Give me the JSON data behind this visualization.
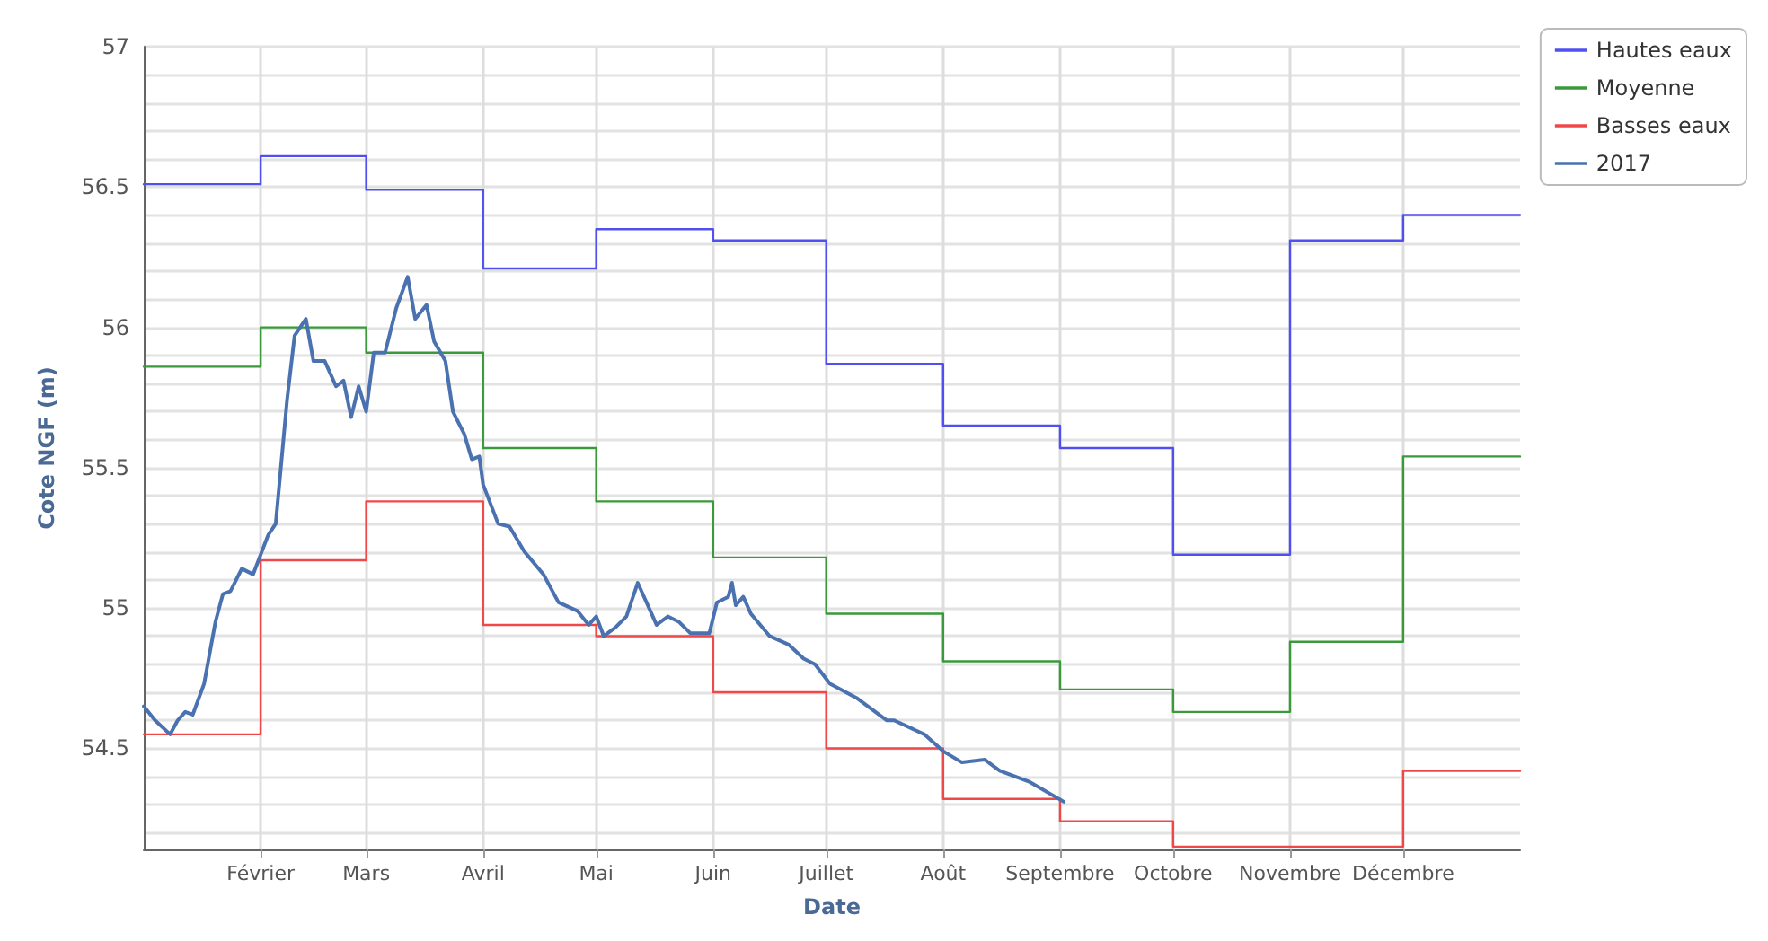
{
  "chart_data": {
    "type": "step",
    "xlabel": "Date",
    "ylabel": "Cote NGF (m)",
    "xlim": [
      "2017-01-01",
      "2018-01-01"
    ],
    "xticks": [
      {
        "value": "2017-02-01",
        "label": "Février"
      },
      {
        "value": "2017-03-01",
        "label": "Mars"
      },
      {
        "value": "2017-04-01",
        "label": "Avril"
      },
      {
        "value": "2017-05-01",
        "label": "Mai"
      },
      {
        "value": "2017-06-01",
        "label": "Juin"
      },
      {
        "value": "2017-07-01",
        "label": "Juillet"
      },
      {
        "value": "2017-08-01",
        "label": "Août"
      },
      {
        "value": "2017-09-01",
        "label": "Septembre"
      },
      {
        "value": "2017-10-01",
        "label": "Octobre"
      },
      {
        "value": "2017-11-01",
        "label": "Novembre"
      },
      {
        "value": "2017-12-01",
        "label": "Décembre"
      }
    ],
    "ylim": [
      54.14,
      57
    ],
    "yticks": [
      {
        "value": 54.2,
        "label": null
      },
      {
        "value": 54.3,
        "label": null
      },
      {
        "value": 54.4,
        "label": null
      },
      54.5,
      {
        "value": 54.6,
        "label": null
      },
      {
        "value": 54.7,
        "label": null
      },
      {
        "value": 54.8,
        "label": null
      },
      {
        "value": 54.9,
        "label": null
      },
      55,
      {
        "value": 55.1,
        "label": null
      },
      {
        "value": 55.2,
        "label": null
      },
      {
        "value": 55.3,
        "label": null
      },
      {
        "value": 55.4,
        "label": null
      },
      55.5,
      {
        "value": 55.6,
        "label": null
      },
      {
        "value": 55.7,
        "label": null
      },
      {
        "value": 55.8,
        "label": null
      },
      {
        "value": 55.9,
        "label": null
      },
      56,
      {
        "value": 56.1,
        "label": null
      },
      {
        "value": 56.2,
        "label": null
      },
      {
        "value": 56.3,
        "label": null
      },
      {
        "value": 56.4,
        "label": null
      },
      56.5,
      {
        "value": 56.6,
        "label": null
      },
      {
        "value": 56.7,
        "label": null
      },
      {
        "value": 56.8,
        "label": null
      },
      {
        "value": 56.9,
        "label": null
      },
      57
    ],
    "grid": true,
    "legend": "top right",
    "marker": "none",
    "line_style": "solid",
    "series": [
      {
        "name": "Hautes eaux",
        "color": "#5050f0",
        "x": [
          "2017-01-01",
          "2017-02-01",
          "2017-03-01",
          "2017-04-01",
          "2017-05-01",
          "2017-06-01",
          "2017-07-01",
          "2017-08-01",
          "2017-09-01",
          "2017-10-01",
          "2017-11-01",
          "2017-12-01",
          "2018-01-01"
        ],
        "values": [
          56.51,
          56.61,
          56.49,
          56.21,
          56.35,
          56.31,
          55.87,
          55.65,
          55.57,
          55.19,
          56.31,
          56.4,
          56.4
        ]
      },
      {
        "name": "Moyenne",
        "color": "#3a9a3a",
        "x": [
          "2017-01-01",
          "2017-02-01",
          "2017-03-01",
          "2017-04-01",
          "2017-05-01",
          "2017-06-01",
          "2017-07-01",
          "2017-08-01",
          "2017-09-01",
          "2017-10-01",
          "2017-11-01",
          "2017-12-01",
          "2018-01-01"
        ],
        "values": [
          55.86,
          56.0,
          55.91,
          55.57,
          55.38,
          55.18,
          54.98,
          54.81,
          54.71,
          54.63,
          54.88,
          55.54,
          55.54
        ]
      },
      {
        "name": "Basses eaux",
        "color": "#f04848",
        "x": [
          "2017-01-01",
          "2017-02-01",
          "2017-03-01",
          "2017-04-01",
          "2017-05-01",
          "2017-06-01",
          "2017-07-01",
          "2017-08-01",
          "2017-09-01",
          "2017-10-01",
          "2017-11-01",
          "2017-12-01",
          "2018-01-01"
        ],
        "values": [
          54.55,
          55.17,
          55.38,
          54.94,
          54.9,
          54.7,
          54.5,
          54.32,
          54.24,
          54.15,
          54.15,
          54.42,
          54.42
        ]
      },
      {
        "name": "2017",
        "type": "line",
        "color": "#4a72b0",
        "x": [
          "2017-01-01",
          "2017-01-04",
          "2017-01-08",
          "2017-01-10",
          "2017-01-12",
          "2017-01-14",
          "2017-01-17",
          "2017-01-20",
          "2017-01-22",
          "2017-01-24",
          "2017-01-27",
          "2017-01-30",
          "2017-02-03",
          "2017-02-05",
          "2017-02-08",
          "2017-02-10",
          "2017-02-13",
          "2017-02-15",
          "2017-02-18",
          "2017-02-21",
          "2017-02-23",
          "2017-02-25",
          "2017-02-27",
          "2017-03-01",
          "2017-03-03",
          "2017-03-06",
          "2017-03-09",
          "2017-03-12",
          "2017-03-14",
          "2017-03-17",
          "2017-03-19",
          "2017-03-22",
          "2017-03-24",
          "2017-03-27",
          "2017-03-29",
          "2017-03-31",
          "2017-04-01",
          "2017-04-05",
          "2017-04-08",
          "2017-04-12",
          "2017-04-17",
          "2017-04-21",
          "2017-04-26",
          "2017-04-29",
          "2017-05-01",
          "2017-05-03",
          "2017-05-06",
          "2017-05-09",
          "2017-05-12",
          "2017-05-14",
          "2017-05-17",
          "2017-05-20",
          "2017-05-23",
          "2017-05-26",
          "2017-05-31",
          "2017-06-02",
          "2017-06-05",
          "2017-06-06",
          "2017-06-07",
          "2017-06-09",
          "2017-06-11",
          "2017-06-16",
          "2017-06-21",
          "2017-06-25",
          "2017-06-28",
          "2017-07-02",
          "2017-07-09",
          "2017-07-17",
          "2017-07-19",
          "2017-07-27",
          "2017-08-01",
          "2017-08-06",
          "2017-08-12",
          "2017-08-16",
          "2017-08-24",
          "2017-09-02"
        ],
        "values": [
          54.65,
          54.6,
          54.55,
          54.6,
          54.63,
          54.62,
          54.73,
          54.95,
          55.05,
          55.06,
          55.14,
          55.12,
          55.26,
          55.3,
          55.74,
          55.97,
          56.03,
          55.88,
          55.88,
          55.79,
          55.81,
          55.68,
          55.79,
          55.7,
          55.91,
          55.91,
          56.07,
          56.18,
          56.03,
          56.08,
          55.95,
          55.88,
          55.7,
          55.62,
          55.53,
          55.54,
          55.44,
          55.3,
          55.29,
          55.2,
          55.12,
          55.02,
          54.99,
          54.94,
          54.97,
          54.9,
          54.93,
          54.97,
          55.09,
          55.03,
          54.94,
          54.97,
          54.95,
          54.91,
          54.91,
          55.02,
          55.04,
          55.09,
          55.01,
          55.04,
          54.98,
          54.9,
          54.87,
          54.82,
          54.8,
          54.73,
          54.68,
          54.6,
          54.6,
          54.55,
          54.49,
          54.45,
          54.46,
          54.42,
          54.38,
          54.31
        ]
      }
    ]
  }
}
